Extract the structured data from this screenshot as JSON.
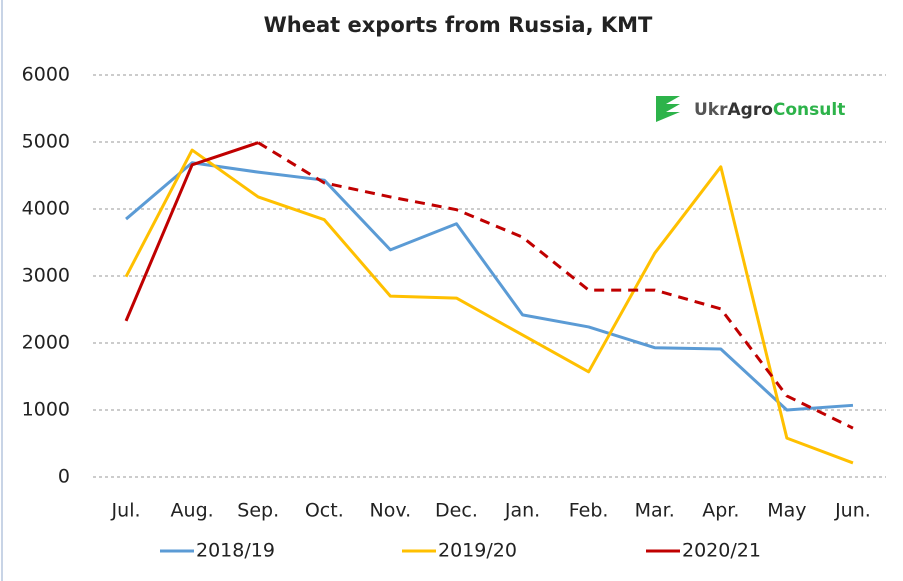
{
  "chart_data": {
    "type": "line",
    "title": "Wheat exports from Russia, KMT",
    "logo": [
      "Ukr",
      "Agro",
      "Consult"
    ],
    "categories": [
      "Jul.",
      "Aug.",
      "Sep.",
      "Oct.",
      "Nov.",
      "Dec.",
      "Jan.",
      "Feb.",
      "Mar.",
      "Apr.",
      "May",
      "Jun."
    ],
    "series": [
      {
        "name": "2018/19",
        "color": "#5b9bd5",
        "values": [
          3850,
          4690,
          4550,
          4430,
          3390,
          3780,
          2420,
          2240,
          1930,
          1910,
          1000,
          1070
        ]
      },
      {
        "name": "2019/20",
        "color": "#ffc000",
        "values": [
          2990,
          4880,
          4180,
          3840,
          2700,
          2670,
          2120,
          1570,
          3340,
          4630,
          580,
          210
        ]
      },
      {
        "name": "2020/21",
        "color": "#c00000",
        "dashed_from": 2,
        "values": [
          2330,
          4660,
          4990,
          4390,
          4180,
          3990,
          3580,
          2790,
          2790,
          2510,
          1210,
          730
        ]
      }
    ],
    "ylim": [
      0,
      6000
    ],
    "yticks": [
      0,
      1000,
      2000,
      3000,
      4000,
      5000,
      6000
    ],
    "grid": true,
    "legend": "bottom"
  }
}
